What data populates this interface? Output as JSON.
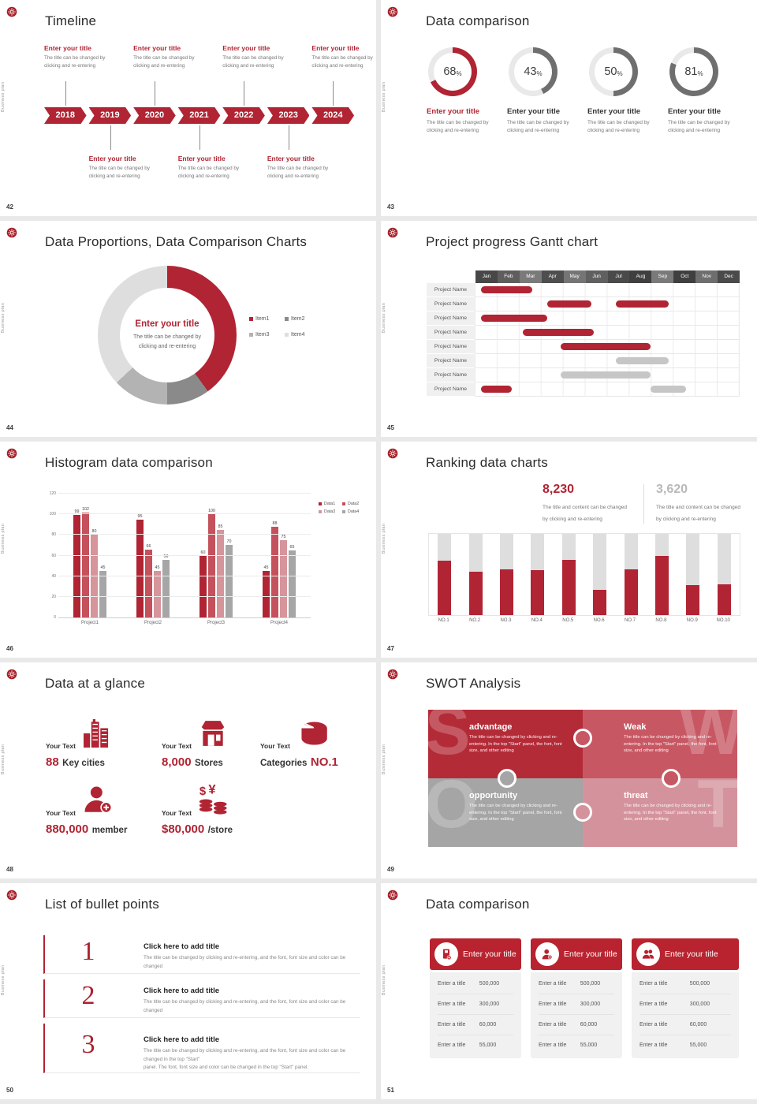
{
  "canvas": {
    "bg": "#e9e9e9"
  },
  "side_label": "Business plan",
  "colors": {
    "red": "#b02433",
    "red_mid": "#c4515c",
    "red_light": "#d6949b",
    "gray": "#a6a6a6"
  },
  "slides": {
    "timeline": {
      "page": "42",
      "title": "Timeline",
      "years": [
        "2018",
        "2019",
        "2020",
        "2021",
        "2022",
        "2023",
        "2024"
      ],
      "top_indices": [
        0,
        2,
        4,
        6
      ],
      "bottom_indices": [
        1,
        3,
        5
      ],
      "item_title": "Enter your title",
      "item_desc": [
        "The title can be changed by",
        "clicking and re-entering"
      ]
    },
    "donuts": {
      "page": "43",
      "title": "Data comparison",
      "item_title": "Enter your title",
      "item_desc": [
        "The title can be changed by",
        "clicking and re-entering"
      ],
      "track": "#e9e9e9",
      "items": [
        {
          "pct": 68,
          "arc": "#b02433",
          "title_color": "#b02433"
        },
        {
          "pct": 43,
          "arc": "#6f6f6f",
          "title_color": "#333333"
        },
        {
          "pct": 50,
          "arc": "#6f6f6f",
          "title_color": "#333333"
        },
        {
          "pct": 81,
          "arc": "#6f6f6f",
          "title_color": "#333333"
        }
      ]
    },
    "proportions": {
      "page": "44",
      "title": "Data Proportions, Data Comparison Charts",
      "center_title": "Enter your title",
      "center_desc": [
        "The title can be changed by",
        "clicking and re-entering"
      ],
      "chart_data": {
        "type": "pie",
        "segments": [
          {
            "label": "Item1",
            "value": 40,
            "color": "#b02433"
          },
          {
            "label": "Item2",
            "value": 10,
            "color": "#8a8a8a"
          },
          {
            "label": "Item3",
            "value": 13,
            "color": "#b3b3b3"
          },
          {
            "label": "Item4",
            "value": 37,
            "color": "#dedede"
          }
        ]
      }
    },
    "gantt": {
      "page": "45",
      "title": "Project progress Gantt chart",
      "row_label": "Project Name",
      "months": [
        {
          "label": "Jan",
          "bg": "#474747"
        },
        {
          "label": "Feb",
          "bg": "#5e5e5e"
        },
        {
          "label": "Mar",
          "bg": "#7a7a7a"
        },
        {
          "label": "Apr",
          "bg": "#4e4e4e"
        },
        {
          "label": "May",
          "bg": "#757575"
        },
        {
          "label": "Jun",
          "bg": "#606060"
        },
        {
          "label": "Jul",
          "bg": "#4a4a4a"
        },
        {
          "label": "Aug",
          "bg": "#3f3f3f"
        },
        {
          "label": "Sep",
          "bg": "#7a7a7a"
        },
        {
          "label": "Oct",
          "bg": "#3f3f3f"
        },
        {
          "label": "Nov",
          "bg": "#6e6e6e"
        },
        {
          "label": "Dec",
          "bg": "#4a4a4a"
        }
      ],
      "bars": [
        [
          {
            "s": 0.3,
            "e": 2.6,
            "c": "#b02433"
          }
        ],
        [
          {
            "s": 3.3,
            "e": 5.3,
            "c": "#b02433"
          },
          {
            "s": 6.4,
            "e": 8.8,
            "c": "#b02433"
          }
        ],
        [
          {
            "s": 0.3,
            "e": 3.3,
            "c": "#b02433"
          }
        ],
        [
          {
            "s": 2.2,
            "e": 5.4,
            "c": "#b02433"
          }
        ],
        [
          {
            "s": 3.9,
            "e": 8.0,
            "c": "#b02433"
          }
        ],
        [
          {
            "s": 6.4,
            "e": 8.8,
            "c": "#c6c6c6"
          }
        ],
        [
          {
            "s": 3.9,
            "e": 8.0,
            "c": "#c6c6c6"
          }
        ],
        [
          {
            "s": 0.3,
            "e": 1.7,
            "c": "#b02433"
          },
          {
            "s": 8.0,
            "e": 9.6,
            "c": "#c6c6c6"
          }
        ]
      ]
    },
    "histogram": {
      "page": "46",
      "title": "Histogram data comparison",
      "chart_data": {
        "type": "bar",
        "categories": [
          "Project1",
          "Project2",
          "Project3",
          "Project4"
        ],
        "series": [
          {
            "name": "Data1",
            "color": "#b02433",
            "values": [
              99,
              95,
              60,
              45
            ]
          },
          {
            "name": "Data2",
            "color": "#c4515c",
            "values": [
              102,
              66,
              100,
              88
            ]
          },
          {
            "name": "Data3",
            "color": "#d6949b",
            "values": [
              80,
              45,
              85,
              75
            ]
          },
          {
            "name": "Data4",
            "color": "#a6a6a6",
            "values": [
              45,
              56,
              70,
              65
            ]
          }
        ],
        "ylim": [
          0,
          120
        ],
        "ytick_step": 20,
        "grid": true,
        "legend_position": "top-right"
      }
    },
    "ranking": {
      "page": "47",
      "title": "Ranking data charts",
      "stats": [
        {
          "value": "8,230",
          "color": "#b02433",
          "desc": [
            "The title and content can be changed",
            "by clicking and re-entering"
          ]
        },
        {
          "value": "3,620",
          "color": "#b9b9b9",
          "desc": [
            "The title and content can be changed",
            "by clicking and re-entering"
          ]
        }
      ],
      "chart_data": {
        "type": "bar",
        "categories": [
          "NO.1",
          "NO.2",
          "NO.3",
          "NO.4",
          "NO.5",
          "NO.6",
          "NO.7",
          "NO.8",
          "NO.9",
          "NO.10"
        ],
        "values": [
          67,
          53,
          56,
          55,
          68,
          31,
          56,
          73,
          37,
          38
        ],
        "ylim": [
          0,
          100
        ],
        "fill": "#b02433",
        "track": "#dedede"
      }
    },
    "glance": {
      "page": "48",
      "title": "Data at a glance",
      "label": "Your Text",
      "items": [
        {
          "icon": "city",
          "big": "88",
          "unit": "Key cities"
        },
        {
          "icon": "store",
          "big": "8,000",
          "unit": "Stores"
        },
        {
          "icon": "pie",
          "unit": "Categories",
          "big": "NO.1"
        },
        {
          "icon": "member",
          "big": "880,000",
          "unit": "member"
        },
        {
          "icon": "coins",
          "big": "$80,000",
          "unit": "/store"
        }
      ]
    },
    "swot": {
      "page": "49",
      "title": "SWOT Analysis",
      "quadrants": [
        {
          "letter": "S",
          "name": "advantage",
          "color": "#b42b38",
          "body": "The title can be changed by clicking and re-entering. In the top \"Start\" panel, the font, font size, and other editing"
        },
        {
          "letter": "W",
          "name": "Weak",
          "color": "#c75863",
          "body": "The title can be changed by clicking and re-entering. In the top \"Start\" panel, the font, font size, and other editing"
        },
        {
          "letter": "O",
          "name": "opportunity",
          "color": "#a5a5a5",
          "body": "The title can be changed by clicking and re-entering. In the top \"Start\" panel, the font, font size, and other editing"
        },
        {
          "letter": "T",
          "name": "threat",
          "color": "#d4939c",
          "body": "The title can be changed by clicking and re-entering. In the top \"Start\" panel, the font, font size, and other editing"
        }
      ]
    },
    "bullets": {
      "page": "50",
      "title": "List of bullet points",
      "items": [
        {
          "num": "1",
          "title": "Click here to add title",
          "desc": [
            "The title can be changed by clicking and re-entering, and the font, font size and color can be changed"
          ]
        },
        {
          "num": "2",
          "title": "Click here to add title",
          "desc": [
            "The title can be changed by clicking and re-entering, and the font, font size and color can be changed"
          ]
        },
        {
          "num": "3",
          "title": "Click here to add title",
          "desc": [
            "The title can be changed by clicking and re-entering, and the font, font size and color can be changed in the top \"Start\"",
            "panel. The font, font size and color can be changed in the top \"Start\" panel."
          ]
        }
      ]
    },
    "cards": {
      "page": "51",
      "title": "Data comparison",
      "header": "Enter your title",
      "icons": [
        "badge-plus-icon",
        "person-plus-icon",
        "people-icon"
      ],
      "rows": [
        {
          "label": "Enter a title",
          "value": "500,000"
        },
        {
          "label": "Enter a title",
          "value": "300,000"
        },
        {
          "label": "Enter a title",
          "value": "60,000"
        },
        {
          "label": "Enter a title",
          "value": "55,000"
        }
      ]
    }
  }
}
